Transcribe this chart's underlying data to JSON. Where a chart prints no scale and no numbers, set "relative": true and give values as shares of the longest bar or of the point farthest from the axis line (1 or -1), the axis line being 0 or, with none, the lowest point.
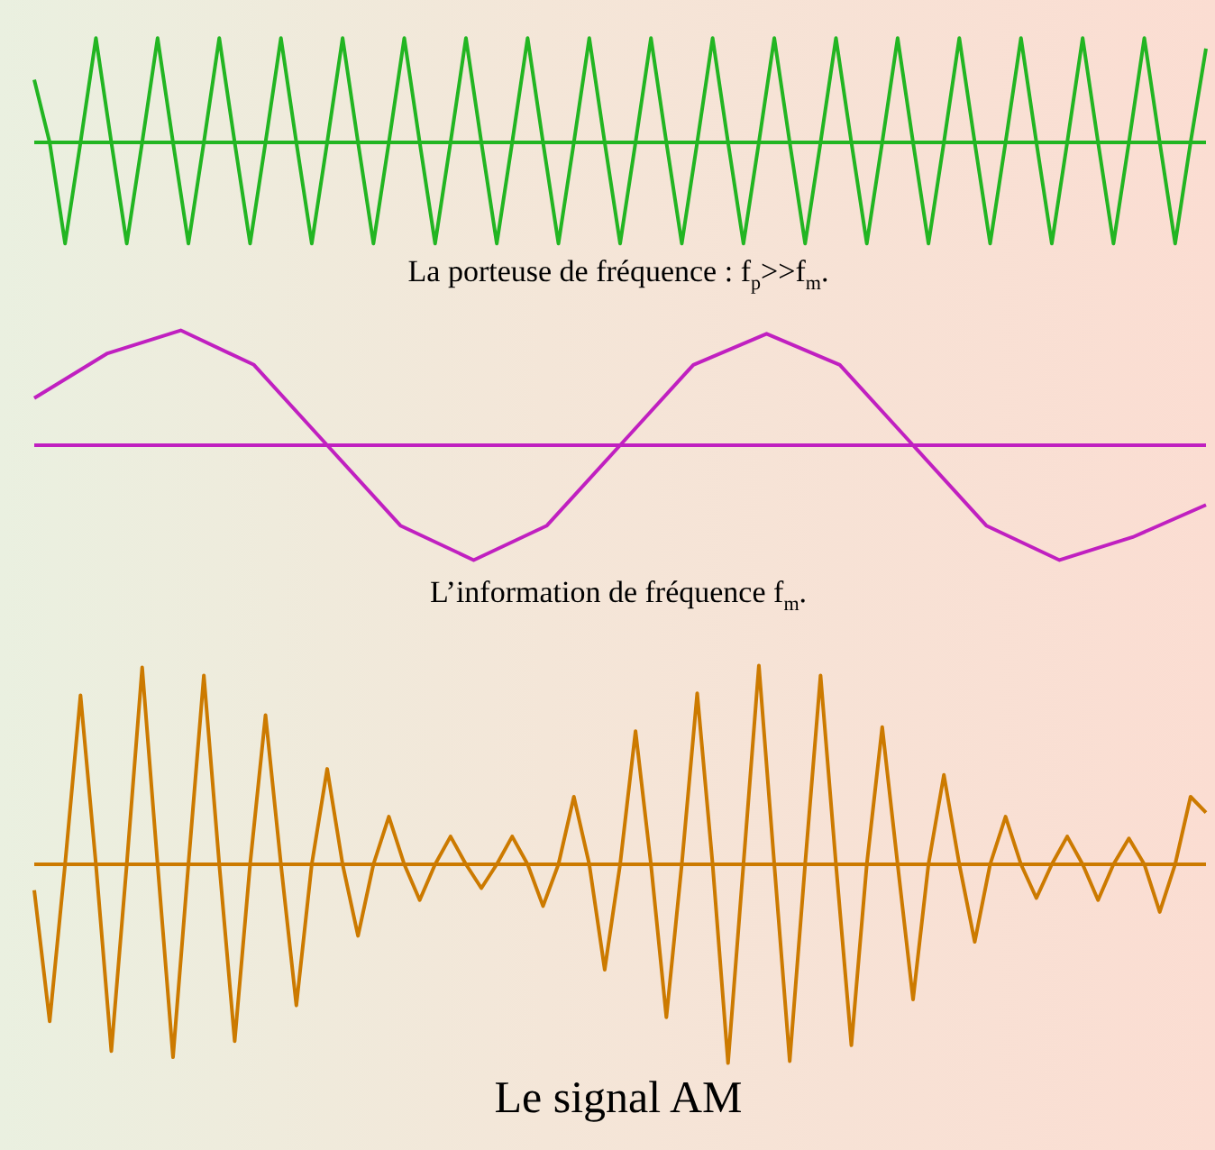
{
  "chart_data": [
    {
      "type": "line",
      "relative": true,
      "title": "La porteuse de fréquence : f$_{p}$>>f$_{m}$.",
      "categories": [
        null,
        null,
        null,
        null,
        null,
        null,
        null,
        null,
        null,
        null,
        null,
        null,
        null,
        null,
        null,
        null,
        null,
        null,
        null,
        null,
        null,
        null,
        null,
        null,
        null,
        null,
        null,
        null,
        null,
        null,
        null,
        null,
        null,
        null,
        null,
        null,
        null,
        null,
        null,
        null,
        null,
        null,
        null,
        null,
        null,
        null,
        null,
        null,
        null,
        null,
        null,
        null,
        null,
        null,
        null,
        null,
        null,
        null,
        null,
        null,
        null,
        null,
        null,
        null,
        null,
        null,
        null,
        null,
        null,
        null,
        null,
        null,
        null,
        null,
        null,
        null,
        null
      ],
      "series": [
        {
          "color": "#22b522",
          "values": [
            0.6,
            0,
            -0.97,
            0,
            1,
            0,
            -0.97,
            0,
            1,
            0,
            -0.97,
            0,
            1,
            0,
            -0.97,
            0,
            1,
            0,
            -0.97,
            0,
            1,
            0,
            -0.97,
            0,
            1,
            0,
            -0.97,
            0,
            1,
            0,
            -0.97,
            0,
            1,
            0,
            -0.97,
            0,
            1,
            0,
            -0.97,
            0,
            1,
            0,
            -0.97,
            0,
            1,
            0,
            -0.97,
            0,
            1,
            0,
            -0.97,
            0,
            1,
            0,
            -0.97,
            0,
            1,
            0,
            -0.97,
            0,
            1,
            0,
            -0.97,
            0,
            1,
            0,
            -0.97,
            0,
            1,
            0,
            -0.97,
            0,
            1,
            0,
            -0.97,
            0,
            0.9
          ]
        }
      ],
      "ref_lines": [
        {
          "axis": "y",
          "value": 0,
          "color": "#22b522"
        }
      ]
    },
    {
      "type": "line",
      "relative": true,
      "title": "L’information de fréquence f$_{m}$.",
      "categories": [
        null,
        null,
        null,
        null,
        null,
        null,
        null,
        null,
        null,
        null,
        null,
        null,
        null,
        null,
        null,
        null,
        null
      ],
      "series": [
        {
          "color": "#c020c0",
          "values": [
            0.41,
            0.8,
            1,
            0.7,
            0,
            -0.7,
            -1,
            -0.7,
            0,
            0.7,
            0.97,
            0.7,
            0,
            -0.7,
            -1,
            -0.8,
            -0.52
          ]
        }
      ],
      "ref_lines": [
        {
          "axis": "y",
          "value": 0,
          "color": "#c020c0"
        }
      ]
    },
    {
      "type": "line",
      "relative": true,
      "title": "Le signal AM",
      "categories": [
        null,
        null,
        null,
        null,
        null,
        null,
        null,
        null,
        null,
        null,
        null,
        null,
        null,
        null,
        null,
        null,
        null,
        null,
        null,
        null,
        null,
        null,
        null,
        null,
        null,
        null,
        null,
        null,
        null,
        null,
        null,
        null,
        null,
        null,
        null,
        null,
        null,
        null,
        null,
        null,
        null,
        null,
        null,
        null,
        null,
        null,
        null,
        null,
        null,
        null,
        null,
        null,
        null,
        null,
        null,
        null,
        null,
        null,
        null,
        null,
        null,
        null,
        null,
        null,
        null,
        null,
        null,
        null,
        null,
        null,
        null,
        null,
        null,
        null,
        null,
        null,
        null
      ],
      "series": [
        {
          "color": "#cc7a00",
          "values": [
            -0.13,
            -0.79,
            0,
            0.85,
            0,
            -0.94,
            0,
            0.99,
            0,
            -0.97,
            0,
            0.95,
            0,
            -0.89,
            0,
            0.75,
            0,
            -0.71,
            0,
            0.48,
            0,
            -0.36,
            0,
            0.24,
            0,
            -0.18,
            0,
            0.14,
            0,
            -0.12,
            0,
            0.14,
            0,
            -0.21,
            0,
            0.34,
            0,
            -0.53,
            0,
            0.67,
            0,
            -0.77,
            0,
            0.86,
            0,
            -1,
            0,
            1,
            0,
            -0.99,
            0,
            0.95,
            0,
            -0.91,
            0,
            0.69,
            0,
            -0.68,
            0,
            0.45,
            0,
            -0.39,
            0,
            0.24,
            0,
            -0.17,
            0,
            0.14,
            0,
            -0.18,
            0,
            0.13,
            0,
            -0.24,
            0,
            0.34,
            0.26
          ]
        }
      ],
      "ref_lines": [
        {
          "axis": "y",
          "value": 0,
          "color": "#cc7a00"
        }
      ]
    }
  ]
}
